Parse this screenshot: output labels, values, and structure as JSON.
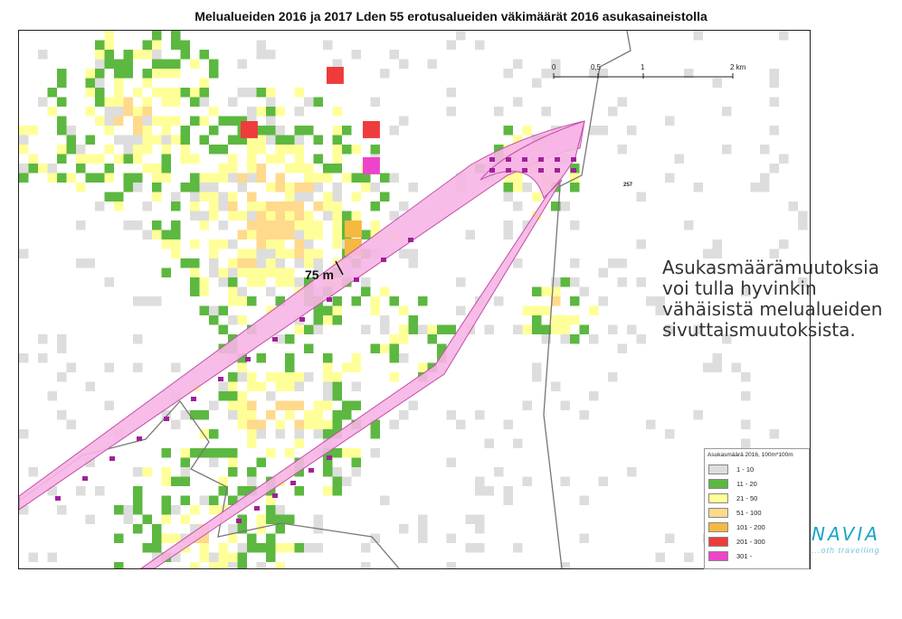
{
  "title": "Melualueiden 2016 ja 2017 Lden 55 erotusalueiden väkimäärät 2016 asukasaineistolla",
  "scale": {
    "labels": [
      "0",
      "0,5",
      "1",
      "2 km"
    ]
  },
  "map_labels": {
    "distance": "75 m",
    "area_number": "257"
  },
  "note_lines": [
    "Asukasmäärämuutoksia",
    "voi tulla hyvinkin",
    "vähäisistä melualueiden",
    "sivuttaismuutoksista."
  ],
  "legend": {
    "title": "Asukasmäärä 2016, 100m*100m",
    "classes": [
      {
        "label": "1 - 10",
        "color": "#dddddd"
      },
      {
        "label": "11 - 20",
        "color": "#5cb840"
      },
      {
        "label": "21 - 50",
        "color": "#ffff99"
      },
      {
        "label": "51 - 100",
        "color": "#ffd98c"
      },
      {
        "label": "101 - 200",
        "color": "#f5b942"
      },
      {
        "label": "201 - 300",
        "color": "#ee3b3b"
      },
      {
        "label": "301 -",
        "color": "#ee44cc"
      }
    ]
  },
  "brand": {
    "name": "NAVIA",
    "tagline": "...oth travelling"
  },
  "colors": {
    "noise_zone": "#f7b5e6",
    "building": "#a0209a",
    "boundary": "#777777"
  }
}
